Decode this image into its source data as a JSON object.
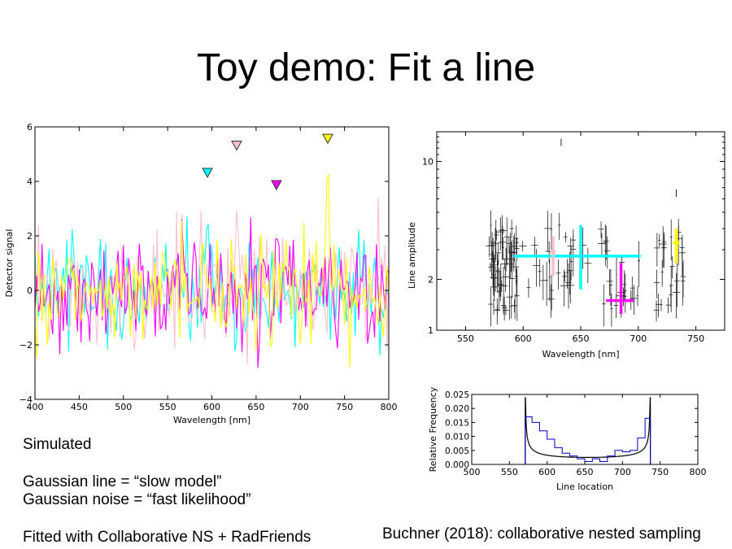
{
  "slide": {
    "title": "Toy demo: Fit a line",
    "caption_lines": [
      "Simulated",
      "",
      "Gaussian line = “slow model”",
      "Gaussian noise = “fast likelihood”",
      "",
      "Fitted with Collaborative NS + RadFriends"
    ],
    "citation": "Buchner (2018): collaborative nested sampling"
  },
  "colors": {
    "cyan": "#00ffff",
    "magenta": "#ff00ff",
    "yellow": "#ffff00",
    "pink": "#ffc0cb"
  },
  "chart_data": [
    {
      "type": "line",
      "xlabel": "Wavelength [nm]",
      "ylabel": "Detector signal",
      "xlim": [
        400,
        800
      ],
      "ylim": [
        -4,
        6
      ],
      "xticks": [
        400,
        450,
        500,
        550,
        600,
        650,
        700,
        750,
        800
      ],
      "yticks": [
        -4,
        -2,
        0,
        2,
        4,
        6
      ],
      "ytick_labels": [
        "−4",
        "−2",
        "0",
        "2",
        "4",
        "6"
      ],
      "series": [
        {
          "color": "cyan",
          "line_center": 595,
          "line_peak": 2.7,
          "marker": {
            "x": 595,
            "y": 4.3
          }
        },
        {
          "color": "pink",
          "line_center": 628,
          "line_peak": 4.8,
          "marker": {
            "x": 628,
            "y": 5.3
          }
        },
        {
          "color": "magenta",
          "line_center": 673,
          "line_peak": 3.0,
          "marker": {
            "x": 673,
            "y": 3.85
          }
        },
        {
          "color": "yellow",
          "line_center": 731,
          "line_peak": 5.0,
          "marker": {
            "x": 731,
            "y": 5.55
          }
        }
      ]
    },
    {
      "type": "scatter",
      "xlabel": "Wavelength [nm]",
      "ylabel": "Line amplitude",
      "xlim": [
        525,
        775
      ],
      "yscale": "log",
      "ylim": [
        1,
        15
      ],
      "xticks": [
        550,
        600,
        650,
        700,
        750
      ],
      "yticks": [
        1,
        2,
        10
      ],
      "fits": [
        {
          "color": "cyan",
          "x": 650,
          "y": 2.75,
          "x_range": [
            592,
            702
          ],
          "y_range": [
            1.75,
            4.2
          ]
        },
        {
          "color": "pink",
          "x": 626,
          "y": 2.9,
          "x_range": [
            624,
            628
          ],
          "y_range": [
            2.1,
            3.6
          ]
        },
        {
          "color": "magenta",
          "x": 685,
          "y": 1.5,
          "x_range": [
            672,
            696
          ],
          "y_range": [
            1.25,
            2.5
          ]
        },
        {
          "color": "yellow",
          "x": 733,
          "y": 3.3,
          "x_range": [
            730,
            736
          ],
          "y_range": [
            2.5,
            4.0
          ]
        }
      ]
    },
    {
      "type": "line",
      "xlabel": "Line location",
      "ylabel": "Relative Frequency",
      "xlim": [
        500,
        800
      ],
      "ylim": [
        0,
        0.025
      ],
      "xticks": [
        500,
        550,
        600,
        650,
        700,
        750,
        800
      ],
      "yticks": [
        0.0,
        0.005,
        0.01,
        0.015,
        0.02,
        0.025
      ],
      "ytick_labels": [
        "0.000",
        "0.005",
        "0.010",
        "0.015",
        "0.020",
        "0.025"
      ],
      "support": [
        571,
        737
      ],
      "histogram": {
        "bins": [
          571,
          580,
          590,
          600,
          610,
          620,
          630,
          640,
          650,
          660,
          670,
          680,
          690,
          700,
          710,
          720,
          730,
          737
        ],
        "values": [
          0.017,
          0.015,
          0.012,
          0.009,
          0.006,
          0.004,
          0.003,
          0.002,
          0.001,
          0.002,
          0.001,
          0.003,
          0.005,
          0.0045,
          0.005,
          0.0095,
          0.0165
        ]
      }
    }
  ]
}
